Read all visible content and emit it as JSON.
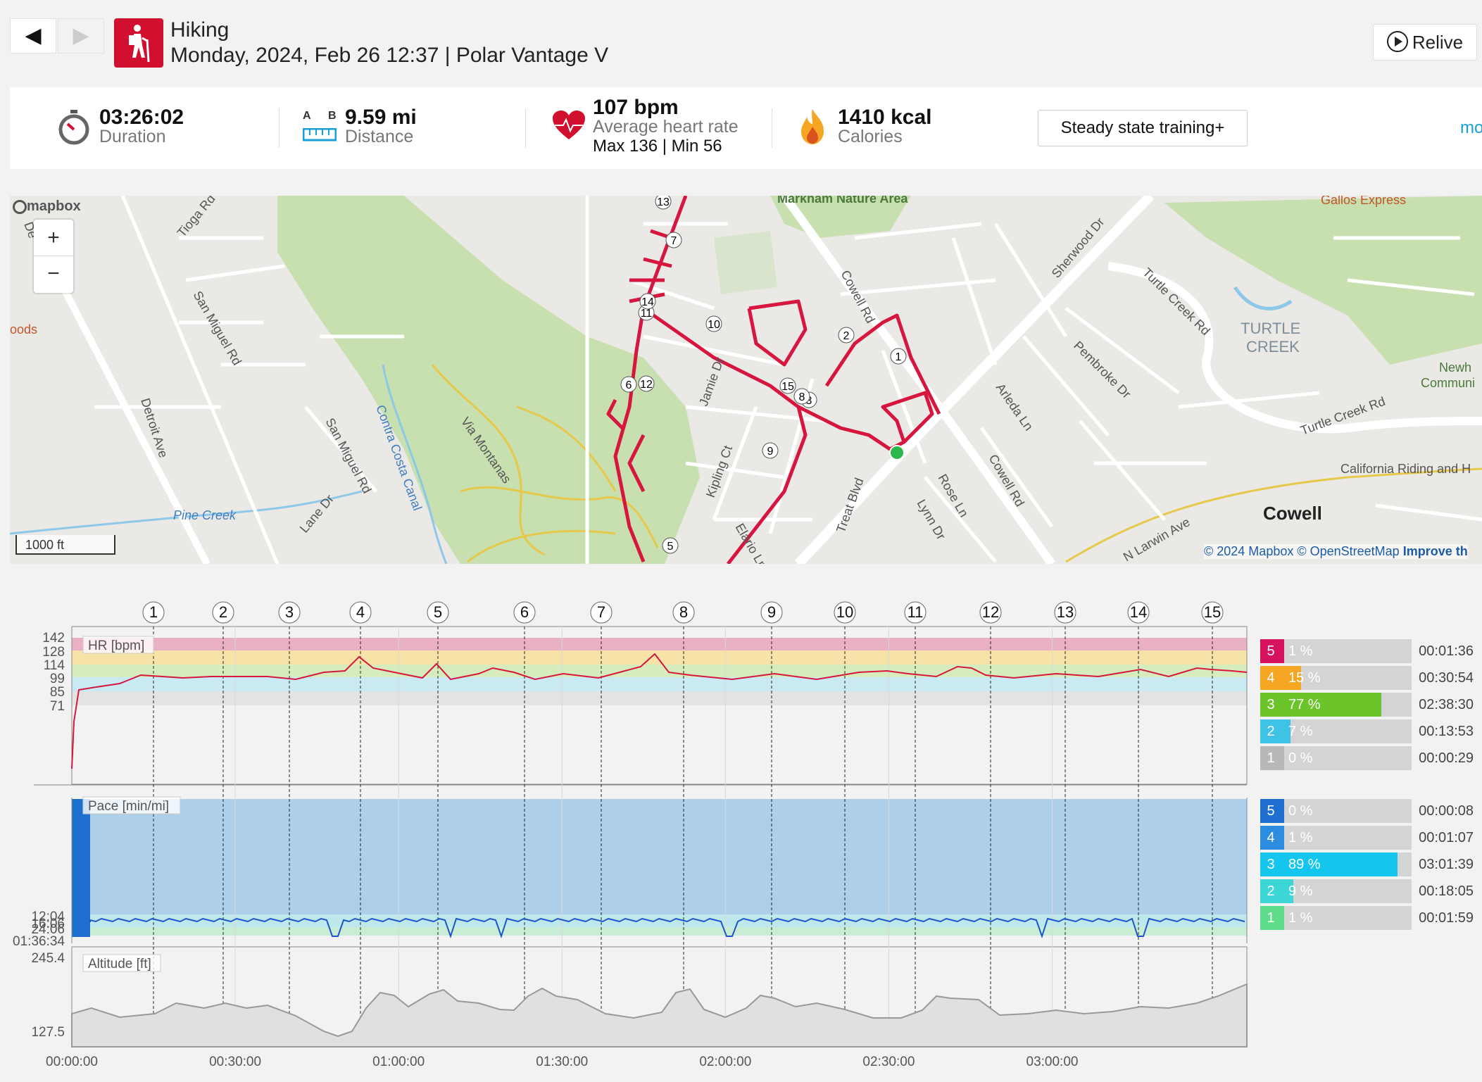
{
  "header": {
    "sport": "Hiking",
    "subtitle": "Monday, 2024, Feb 26 12:37 | Polar Vantage V",
    "relive_label": "Relive",
    "back_icon": "back-arrow-icon",
    "forward_icon": "forward-arrow-icon"
  },
  "summary": {
    "duration": "03:26:02",
    "duration_label": "Duration",
    "ab_a": "A",
    "ab_b": "B",
    "distance": "9.59 mi",
    "distance_label": "Distance",
    "hr": "107 bpm",
    "hr_label": "Average heart rate",
    "hr_maxmin": "Max 136  |  Min 56",
    "calories": "1410 kcal",
    "calories_label": "Calories",
    "training_benefit": "Steady state training+",
    "more_link": "mo"
  },
  "map": {
    "attribution_logo": "mapbox",
    "zoom_in": "+",
    "zoom_out": "−",
    "scale": "1000 ft",
    "copyright": "© 2024 Mapbox © OpenStreetMap",
    "improve": "Improve th",
    "place_labels": [
      "Markham Nature Area",
      "Gallos Express",
      "Tioga Rd",
      "San Miguel Rd",
      "Detroit Ave",
      "San Miguel Rd",
      "Contra Costa Canal",
      "Via Montanas",
      "Pine Creek",
      "Lane Dr",
      "Jamie Dr",
      "Kipling Ct",
      "Elario Ln",
      "Treat Blvd",
      "Cowell Rd",
      "Sherwood Dr",
      "Turtle Creek Rd",
      "TURTLE",
      "CREEK",
      "Pembroke Dr",
      "Arleda Ln",
      "Rose Ln",
      "Lynn Dr",
      "Cowell Rd",
      "Turtle Creek Rd",
      "California Riding and H",
      "Cowell",
      "N Larwin Ave",
      "oods",
      "De",
      "Newh",
      "Communi"
    ],
    "lap_markers": [
      "1",
      "2",
      "3",
      "5",
      "6",
      "7",
      "8",
      "9",
      "10",
      "11",
      "12",
      "13",
      "14",
      "15"
    ]
  },
  "charts": {
    "lap_numbers": [
      "1",
      "2",
      "3",
      "4",
      "5",
      "6",
      "7",
      "8",
      "9",
      "10",
      "11",
      "12",
      "13",
      "14",
      "15"
    ],
    "hr_label": "HR [bpm]",
    "hr_ticks": [
      "142",
      "128",
      "114",
      "99",
      "85",
      "71"
    ],
    "pace_label": "Pace [min/mi]",
    "pace_ticks": [
      "12:04",
      "16:06",
      "24:06",
      "01:36:34"
    ],
    "alt_label": "Altitude [ft]",
    "alt_ticks": [
      "245.4",
      "127.5"
    ],
    "time_ticks": [
      "00:00:00",
      "00:30:00",
      "01:00:00",
      "01:30:00",
      "02:00:00",
      "02:30:00",
      "03:00:00"
    ],
    "hr_zones": [
      {
        "zone": "5",
        "pct": "1 %",
        "frac": 0.01,
        "time": "00:01:36",
        "color": "#d6125e"
      },
      {
        "zone": "4",
        "pct": "15 %",
        "frac": 0.15,
        "time": "00:30:54",
        "color": "#f5a623"
      },
      {
        "zone": "3",
        "pct": "77 %",
        "frac": 0.77,
        "time": "02:38:30",
        "color": "#6ac42a"
      },
      {
        "zone": "2",
        "pct": "7 %",
        "frac": 0.07,
        "time": "00:13:53",
        "color": "#3ec2e6"
      },
      {
        "zone": "1",
        "pct": "0 %",
        "frac": 0.0,
        "time": "00:00:29",
        "color": "#b8b8b8"
      }
    ],
    "pace_zones": [
      {
        "zone": "5",
        "pct": "0 %",
        "frac": 0.0,
        "time": "00:00:08",
        "color": "#1e6fd0"
      },
      {
        "zone": "4",
        "pct": "1 %",
        "frac": 0.01,
        "time": "00:01:07",
        "color": "#2c8ce0"
      },
      {
        "zone": "3",
        "pct": "89 %",
        "frac": 0.89,
        "time": "03:01:39",
        "color": "#14c6ee"
      },
      {
        "zone": "2",
        "pct": "9 %",
        "frac": 0.09,
        "time": "00:18:05",
        "color": "#3dd6d6"
      },
      {
        "zone": "1",
        "pct": "1 %",
        "frac": 0.01,
        "time": "00:01:59",
        "color": "#5ddc8a"
      }
    ]
  }
}
